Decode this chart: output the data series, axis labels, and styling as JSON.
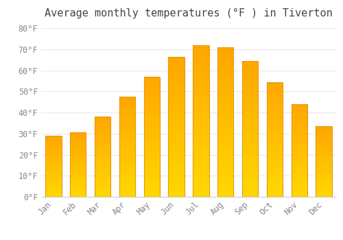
{
  "title": "Average monthly temperatures (°F ) in Tiverton",
  "months": [
    "Jan",
    "Feb",
    "Mar",
    "Apr",
    "May",
    "Jun",
    "Jul",
    "Aug",
    "Sep",
    "Oct",
    "Nov",
    "Dec"
  ],
  "values": [
    29,
    30.5,
    38,
    47.5,
    57,
    66.5,
    72,
    71,
    64.5,
    54.5,
    44,
    33.5
  ],
  "bar_color": "#FFA500",
  "bar_color_bottom": "#FFD700",
  "bar_edge_color": "#E8960A",
  "ylim": [
    0,
    82
  ],
  "yticks": [
    0,
    10,
    20,
    30,
    40,
    50,
    60,
    70,
    80
  ],
  "ytick_labels": [
    "0°F",
    "10°F",
    "20°F",
    "30°F",
    "40°F",
    "50°F",
    "60°F",
    "70°F",
    "80°F"
  ],
  "background_color": "#ffffff",
  "grid_color": "#e8e8e8",
  "title_fontsize": 11,
  "tick_fontsize": 8.5,
  "tick_color": "#888888",
  "title_color": "#444444"
}
